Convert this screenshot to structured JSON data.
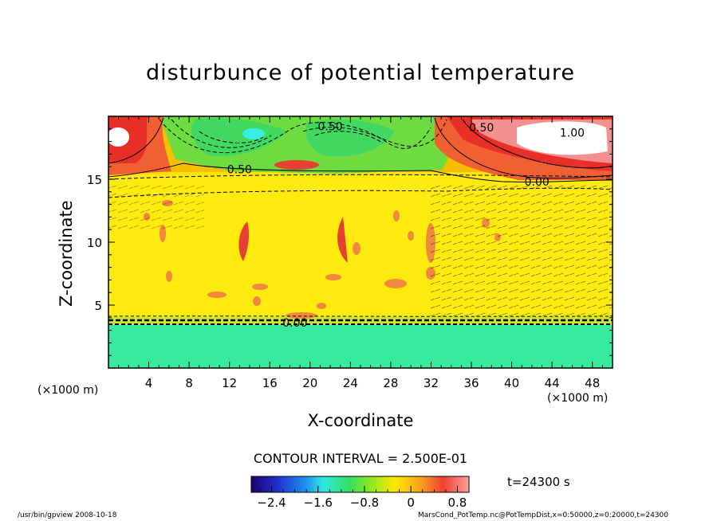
{
  "chart_data": {
    "type": "heatmap",
    "title": "disturbunce of potential temperature",
    "xlabel": "X-coordinate",
    "ylabel": "Z-coordinate",
    "x_unit": "(×1000 m)",
    "z_unit": "(×1000 m)",
    "xlim": [
      0,
      50
    ],
    "ylim": [
      0,
      20
    ],
    "x_ticks": [
      4,
      8,
      12,
      16,
      20,
      24,
      28,
      32,
      36,
      40,
      44,
      48
    ],
    "y_ticks": [
      5,
      10,
      15
    ],
    "contour_interval": "CONTOUR INTERVAL = 2.500E-01",
    "contour_labels": [
      {
        "text": "0.50",
        "x": 22,
        "z": 19.2
      },
      {
        "text": "0.50",
        "x": 13,
        "z": 15.8
      },
      {
        "text": "0.50",
        "x": 37,
        "z": 19.1
      },
      {
        "text": "1.00",
        "x": 46,
        "z": 18.7
      },
      {
        "text": "0.00",
        "x": 42.5,
        "z": 14.8
      },
      {
        "text": "0.00",
        "x": 18.5,
        "z": 3.6
      }
    ],
    "colorbar": {
      "min": -2.75,
      "max": 1.0,
      "tick_labels": [
        "−2.4",
        "−1.6",
        "−0.8",
        "0",
        "0.8"
      ],
      "tick_values": [
        -2.4,
        -1.6,
        -0.8,
        0,
        0.8
      ]
    },
    "time": "t=24300 s"
  },
  "footer": {
    "left": "/usr/bin/gpview   2008-10-18",
    "right": "MarsCond_PotTemp.nc@PotTempDist,x=0:50000,z=0:20000,t=24300"
  },
  "colors": {
    "strong_positive": "#e8322a",
    "positive": "#f6a11f",
    "slightly_positive": "#ffe000",
    "near_zero": "#ffee20",
    "negative_green": "#3ad84a",
    "negative_cyan": "#38f0c0",
    "max_white": "#ffffff"
  }
}
